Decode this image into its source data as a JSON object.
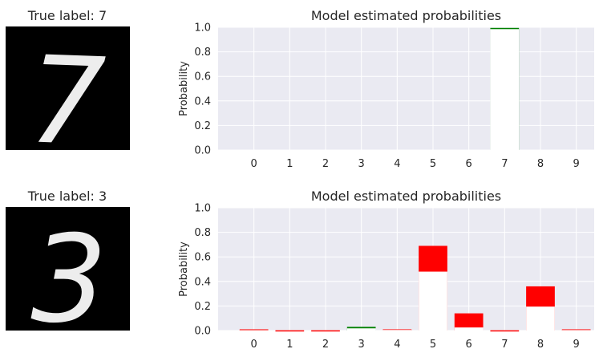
{
  "panels": [
    {
      "image_title": "True label: 7",
      "digit_glyph": "7",
      "true_label": 7
    },
    {
      "image_title": "True label: 3",
      "digit_glyph": "3",
      "true_label": 3
    }
  ],
  "colors": {
    "background": "#EAEAF2",
    "grid": "#FFFFFF",
    "correct": "#008000",
    "incorrect": "#FF0000",
    "mean_bar": "#FFFFFF",
    "image_bg": "#000000",
    "digit": "#EDEDED",
    "text": "#262626"
  },
  "chart_data": [
    {
      "type": "bar",
      "title": "Model estimated probabilities",
      "ylabel": "Probability",
      "xlabel": "",
      "ylim": [
        0,
        1.0
      ],
      "yticks": [
        "0.0",
        "0.2",
        "0.4",
        "0.6",
        "0.8",
        "1.0"
      ],
      "categories": [
        "0",
        "1",
        "2",
        "3",
        "4",
        "5",
        "6",
        "7",
        "8",
        "9"
      ],
      "grid": true,
      "series": [
        {
          "values": [
            0,
            0,
            0,
            0,
            0,
            0,
            0,
            0.995,
            0,
            0
          ]
        },
        {
          "values": [
            0,
            0,
            0,
            0,
            0,
            0,
            0,
            0.985,
            0,
            0
          ]
        }
      ]
    },
    {
      "type": "bar",
      "title": "Model estimated probabilities",
      "ylabel": "Probability",
      "xlabel": "",
      "ylim": [
        0,
        1.0
      ],
      "yticks": [
        "0.0",
        "0.2",
        "0.4",
        "0.6",
        "0.8",
        "1.0"
      ],
      "categories": [
        "0",
        "1",
        "2",
        "3",
        "4",
        "5",
        "6",
        "7",
        "8",
        "9"
      ],
      "grid": true,
      "series": [
        {
          "values": [
            0.01,
            0.002,
            0.002,
            0.03,
            0.01,
            0.69,
            0.14,
            0.002,
            0.36,
            0.01
          ]
        },
        {
          "values": [
            0.003,
            0,
            0,
            0.018,
            0.005,
            0.48,
            0.025,
            0,
            0.195,
            0.004
          ]
        }
      ]
    }
  ]
}
